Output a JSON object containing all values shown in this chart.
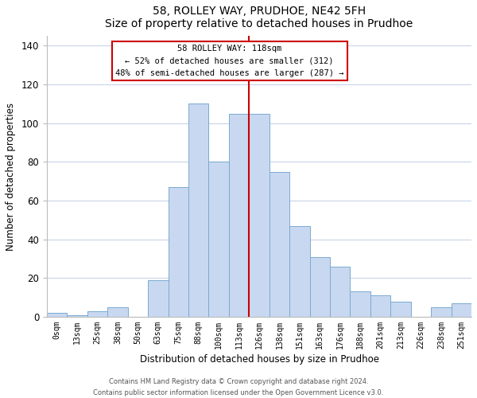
{
  "title": "58, ROLLEY WAY, PRUDHOE, NE42 5FH",
  "subtitle": "Size of property relative to detached houses in Prudhoe",
  "xlabel": "Distribution of detached houses by size in Prudhoe",
  "ylabel": "Number of detached properties",
  "bin_labels": [
    "0sqm",
    "13sqm",
    "25sqm",
    "38sqm",
    "50sqm",
    "63sqm",
    "75sqm",
    "88sqm",
    "100sqm",
    "113sqm",
    "126sqm",
    "138sqm",
    "151sqm",
    "163sqm",
    "176sqm",
    "188sqm",
    "201sqm",
    "213sqm",
    "226sqm",
    "238sqm",
    "251sqm"
  ],
  "bar_heights": [
    2,
    1,
    3,
    5,
    0,
    19,
    67,
    110,
    80,
    105,
    105,
    75,
    47,
    31,
    26,
    13,
    11,
    8,
    0,
    5,
    7
  ],
  "bar_color": "#c8d8f0",
  "bar_edge_color": "#7aaad0",
  "vline_x": 9.5,
  "vline_color": "#cc0000",
  "annotation_title": "58 ROLLEY WAY: 118sqm",
  "annotation_line1": "← 52% of detached houses are smaller (312)",
  "annotation_line2": "48% of semi-detached houses are larger (287) →",
  "annotation_box_edge": "#cc0000",
  "ylim": [
    0,
    145
  ],
  "yticks": [
    0,
    20,
    40,
    60,
    80,
    100,
    120,
    140
  ],
  "footer1": "Contains HM Land Registry data © Crown copyright and database right 2024.",
  "footer2": "Contains public sector information licensed under the Open Government Licence v3.0."
}
